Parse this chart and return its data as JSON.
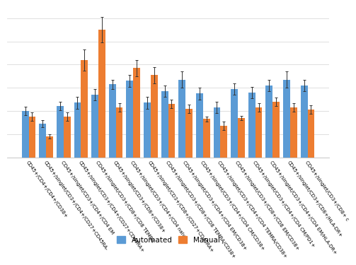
{
  "categories": [
    "CD45+/CD4+/CD4+/CD38+",
    "CD45+/singlet/CD3+/CD4+/CD27+CD45RA-",
    "CD45+/singlet/CD3+/CD4+/CD4 EM",
    "CD45+/singlet/CD3+/CD4+/CD27+CD45RA+",
    "CD45+/singlet/CD3+/CD8+/CD8 TEMRA",
    "CD45+/singlet/CD3+/CD8+/CD38+",
    "CD45+/singlet/CD3+/CD4+/CD4 naive",
    "CD45+/singlet/CD3+/CD8+/CD27+CD45RA+",
    "CD45+/singlet/CD3+/CD8+/CD8 TEMRA/CD38+",
    "CD45+/singlet/CD3+/CD4+/CD4 EM/CD38+",
    "CD45+/singlet/CD3+/CD4+/CD4 CM/CD38+",
    "CD45+/singlet/CD3+/CD4+/CD4 TEMRA/CD38+",
    "CD45+/singlet/CD3+/CD8+/CD8 EM/CD38+",
    "CD45+/singlet/CD3+/CD4+/CD4 CM/PD1+",
    "CD45+/singlet/CD3+/CD4+/CD4 EM/HLA-DR+",
    "CD45+/singlet/CD3+/CD8+/HLA-DR+",
    "CD45+/singlet/CD3+/CD8+ c"
  ],
  "automated": [
    0.2,
    0.145,
    0.22,
    0.235,
    0.27,
    0.315,
    0.33,
    0.235,
    0.285,
    0.335,
    0.275,
    0.215,
    0.295,
    0.28,
    0.31,
    0.335,
    0.31
  ],
  "manual": [
    0.175,
    0.09,
    0.175,
    0.42,
    0.55,
    0.215,
    0.385,
    0.355,
    0.23,
    0.21,
    0.165,
    0.135,
    0.17,
    0.215,
    0.24,
    0.215,
    0.205
  ],
  "auto_err": [
    0.018,
    0.015,
    0.018,
    0.025,
    0.025,
    0.02,
    0.025,
    0.025,
    0.025,
    0.035,
    0.025,
    0.025,
    0.025,
    0.025,
    0.025,
    0.035,
    0.025
  ],
  "man_err": [
    0.018,
    0.01,
    0.018,
    0.045,
    0.055,
    0.018,
    0.035,
    0.035,
    0.018,
    0.018,
    0.01,
    0.018,
    0.01,
    0.018,
    0.018,
    0.018,
    0.018
  ],
  "auto_color": "#5B9BD5",
  "man_color": "#ED7D31",
  "bar_width": 0.4,
  "ylim": [
    0,
    0.65
  ],
  "grid_color": "#D9D9D9",
  "bg_color": "#FFFFFF",
  "legend_labels": [
    "Automated",
    "Manual"
  ],
  "xlabel_fontsize": 5.0,
  "legend_fontsize": 7.5,
  "legend_marker_size": 10
}
